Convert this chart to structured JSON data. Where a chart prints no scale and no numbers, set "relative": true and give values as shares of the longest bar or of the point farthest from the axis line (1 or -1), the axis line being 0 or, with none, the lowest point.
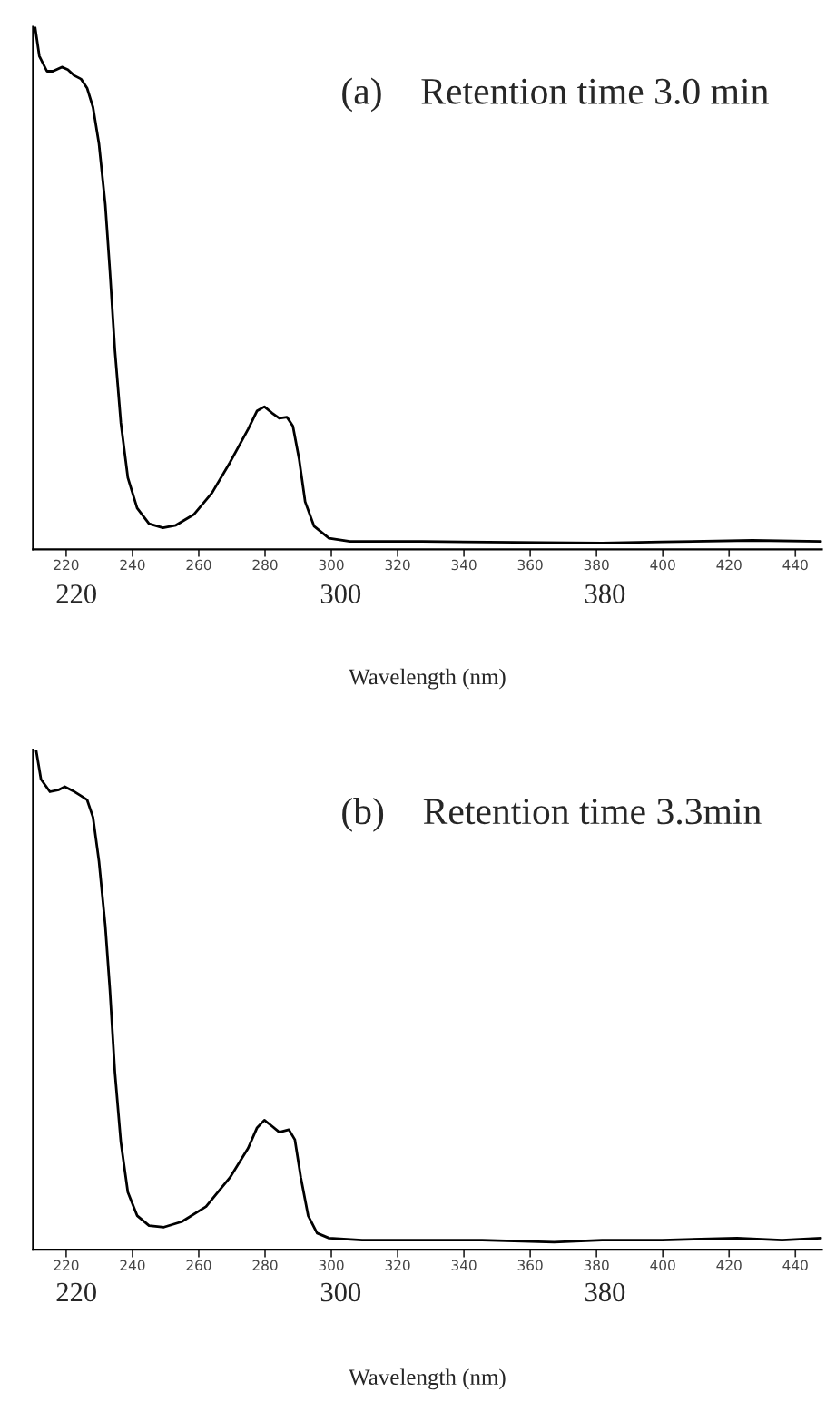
{
  "chart_data": [
    {
      "type": "line",
      "title": "(a)    Retention time 3.0 min",
      "xlabel": "Wavelength (nm)",
      "relative": true,
      "xlim": [
        210,
        448
      ],
      "xticks": [
        220,
        240,
        260,
        280,
        300,
        320,
        340,
        360,
        380,
        400,
        420,
        440
      ],
      "annotations": [
        "220",
        "300",
        "380"
      ],
      "grid": false,
      "legend": false,
      "series": [
        {
          "color": "#000000",
          "x": [
            210.6,
            211.9,
            214.2,
            216,
            218.7,
            220.5,
            222.4,
            224.5,
            226.3,
            228.1,
            229.9,
            231.8,
            233.2,
            234.7,
            236.5,
            238.6,
            241.4,
            245,
            249.2,
            253.1,
            258.6,
            264,
            269.4,
            274.9,
            277.6,
            279.8,
            282.1,
            284.3,
            286.6,
            288.4,
            290.3,
            292.1,
            294.8,
            299.3,
            305.6,
            327.4,
            363.6,
            381.7,
            399.8,
            427,
            447.8
          ],
          "values": [
            1.0,
            0.944,
            0.915,
            0.915,
            0.923,
            0.918,
            0.907,
            0.9,
            0.883,
            0.846,
            0.776,
            0.66,
            0.532,
            0.381,
            0.242,
            0.137,
            0.079,
            0.049,
            0.041,
            0.046,
            0.067,
            0.108,
            0.166,
            0.23,
            0.265,
            0.273,
            0.261,
            0.251,
            0.253,
            0.236,
            0.172,
            0.091,
            0.044,
            0.021,
            0.015,
            0.015,
            0.013,
            0.012,
            0.014,
            0.017,
            0.015
          ]
        }
      ]
    },
    {
      "type": "line",
      "title": "(b)    Retention time 3.3min",
      "xlabel": "Wavelength (nm)",
      "relative": true,
      "xlim": [
        210,
        448
      ],
      "xticks": [
        220,
        240,
        260,
        280,
        300,
        320,
        340,
        360,
        380,
        400,
        420,
        440
      ],
      "annotations": [
        "220",
        "300",
        "380"
      ],
      "grid": false,
      "legend": false,
      "series": [
        {
          "color": "#000000",
          "x": [
            210.9,
            212.4,
            215.1,
            217.8,
            219.6,
            222,
            224.2,
            226.3,
            228.1,
            229.9,
            231.8,
            233.2,
            234.7,
            236.5,
            238.6,
            241.4,
            245,
            249.5,
            254.9,
            262.2,
            269.4,
            274.9,
            277.6,
            279.8,
            282.1,
            284.3,
            287.2,
            289,
            290.8,
            293,
            295.7,
            299.3,
            309.3,
            345.5,
            367.2,
            381.7,
            399.8,
            422.4,
            436,
            447.8
          ],
          "values": [
            1.0,
            0.941,
            0.916,
            0.92,
            0.926,
            0.918,
            0.909,
            0.9,
            0.865,
            0.777,
            0.648,
            0.519,
            0.355,
            0.215,
            0.115,
            0.068,
            0.048,
            0.045,
            0.056,
            0.086,
            0.144,
            0.203,
            0.244,
            0.259,
            0.247,
            0.235,
            0.24,
            0.22,
            0.144,
            0.068,
            0.033,
            0.023,
            0.019,
            0.019,
            0.015,
            0.019,
            0.019,
            0.023,
            0.019,
            0.023
          ]
        }
      ]
    }
  ]
}
